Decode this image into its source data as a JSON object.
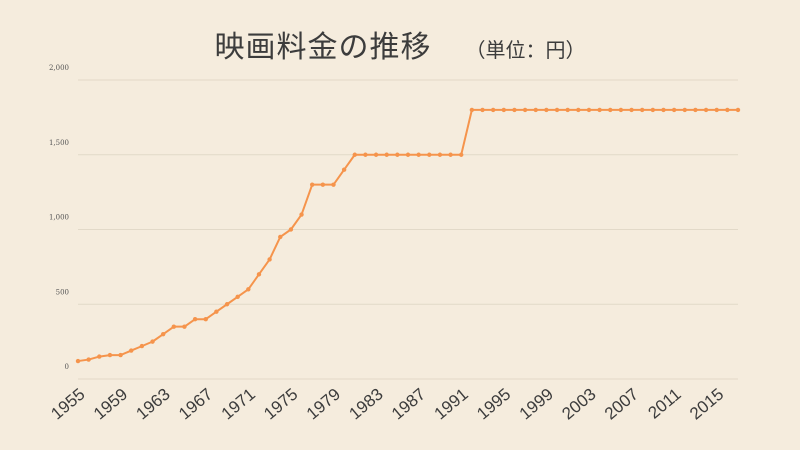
{
  "chart_data": {
    "type": "line",
    "title": "映画料金の推移",
    "subtitle": "（単位：円）",
    "x": [
      1955,
      1956,
      1957,
      1958,
      1959,
      1960,
      1961,
      1962,
      1963,
      1964,
      1965,
      1966,
      1967,
      1968,
      1969,
      1970,
      1971,
      1972,
      1973,
      1974,
      1975,
      1976,
      1977,
      1978,
      1979,
      1980,
      1981,
      1982,
      1983,
      1984,
      1985,
      1986,
      1987,
      1988,
      1989,
      1990,
      1991,
      1992,
      1993,
      1994,
      1995,
      1996,
      1997,
      1998,
      1999,
      2000,
      2001,
      2002,
      2003,
      2004,
      2005,
      2006,
      2007,
      2008,
      2009,
      2010,
      2011,
      2012,
      2013,
      2014,
      2015,
      2016,
      2017
    ],
    "series": [
      {
        "values": [
          120,
          130,
          150,
          160,
          160,
          190,
          220,
          250,
          300,
          350,
          350,
          400,
          400,
          450,
          500,
          550,
          600,
          700,
          800,
          950,
          1000,
          1100,
          1300,
          1300,
          1300,
          1400,
          1500,
          1500,
          1500,
          1500,
          1500,
          1500,
          1500,
          1500,
          1500,
          1500,
          1500,
          1800,
          1800,
          1800,
          1800,
          1800,
          1800,
          1800,
          1800,
          1800,
          1800,
          1800,
          1800,
          1800,
          1800,
          1800,
          1800,
          1800,
          1800,
          1800,
          1800,
          1800,
          1800,
          1800,
          1800,
          1800,
          1800
        ],
        "color": "#f5944c"
      }
    ],
    "xticks": [
      "1955",
      "1959",
      "1963",
      "1967",
      "1971",
      "1975",
      "1979",
      "1983",
      "1987",
      "1991",
      "1995",
      "1999",
      "2003",
      "2007",
      "2011",
      "2015"
    ],
    "yticks": [
      "0",
      "500",
      "1,000",
      "1,500",
      "2,000"
    ],
    "ylim": [
      0,
      2000
    ],
    "xlim": [
      1955,
      2017
    ],
    "grid": true,
    "legend": "none",
    "colors": {
      "background": "#f5ecdd",
      "line": "#f5944c",
      "grid": "#e2d9c8"
    }
  }
}
